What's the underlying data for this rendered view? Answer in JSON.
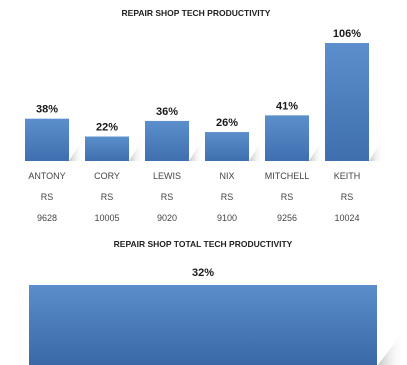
{
  "chart_data": [
    {
      "type": "bar",
      "title": "REPAIR SHOP TECH PRODUCTIVITY",
      "categories": [
        [
          "ANTONY",
          "RS",
          "9628"
        ],
        [
          "CORY",
          "RS",
          "10005"
        ],
        [
          "LEWIS",
          "RS",
          "9020"
        ],
        [
          "NIX",
          "RS",
          "9100"
        ],
        [
          "MITCHELL",
          "RS",
          "9256"
        ],
        [
          "KEITH",
          "RS",
          "10024"
        ]
      ],
      "values": [
        38,
        22,
        36,
        26,
        41,
        106
      ],
      "value_labels": [
        "38%",
        "22%",
        "36%",
        "26%",
        "41%",
        "106%"
      ],
      "unit": "%",
      "ylim": [
        0,
        106
      ],
      "grid": false,
      "legend": "none",
      "bar_color": "#4f81bd"
    },
    {
      "type": "bar",
      "title": "REPAIR SHOP TOTAL TECH PRODUCTIVITY",
      "categories": [
        ""
      ],
      "values": [
        32
      ],
      "value_labels": [
        "32%"
      ],
      "unit": "%",
      "grid": false,
      "legend": "none",
      "bar_color": "#4f81bd"
    }
  ]
}
